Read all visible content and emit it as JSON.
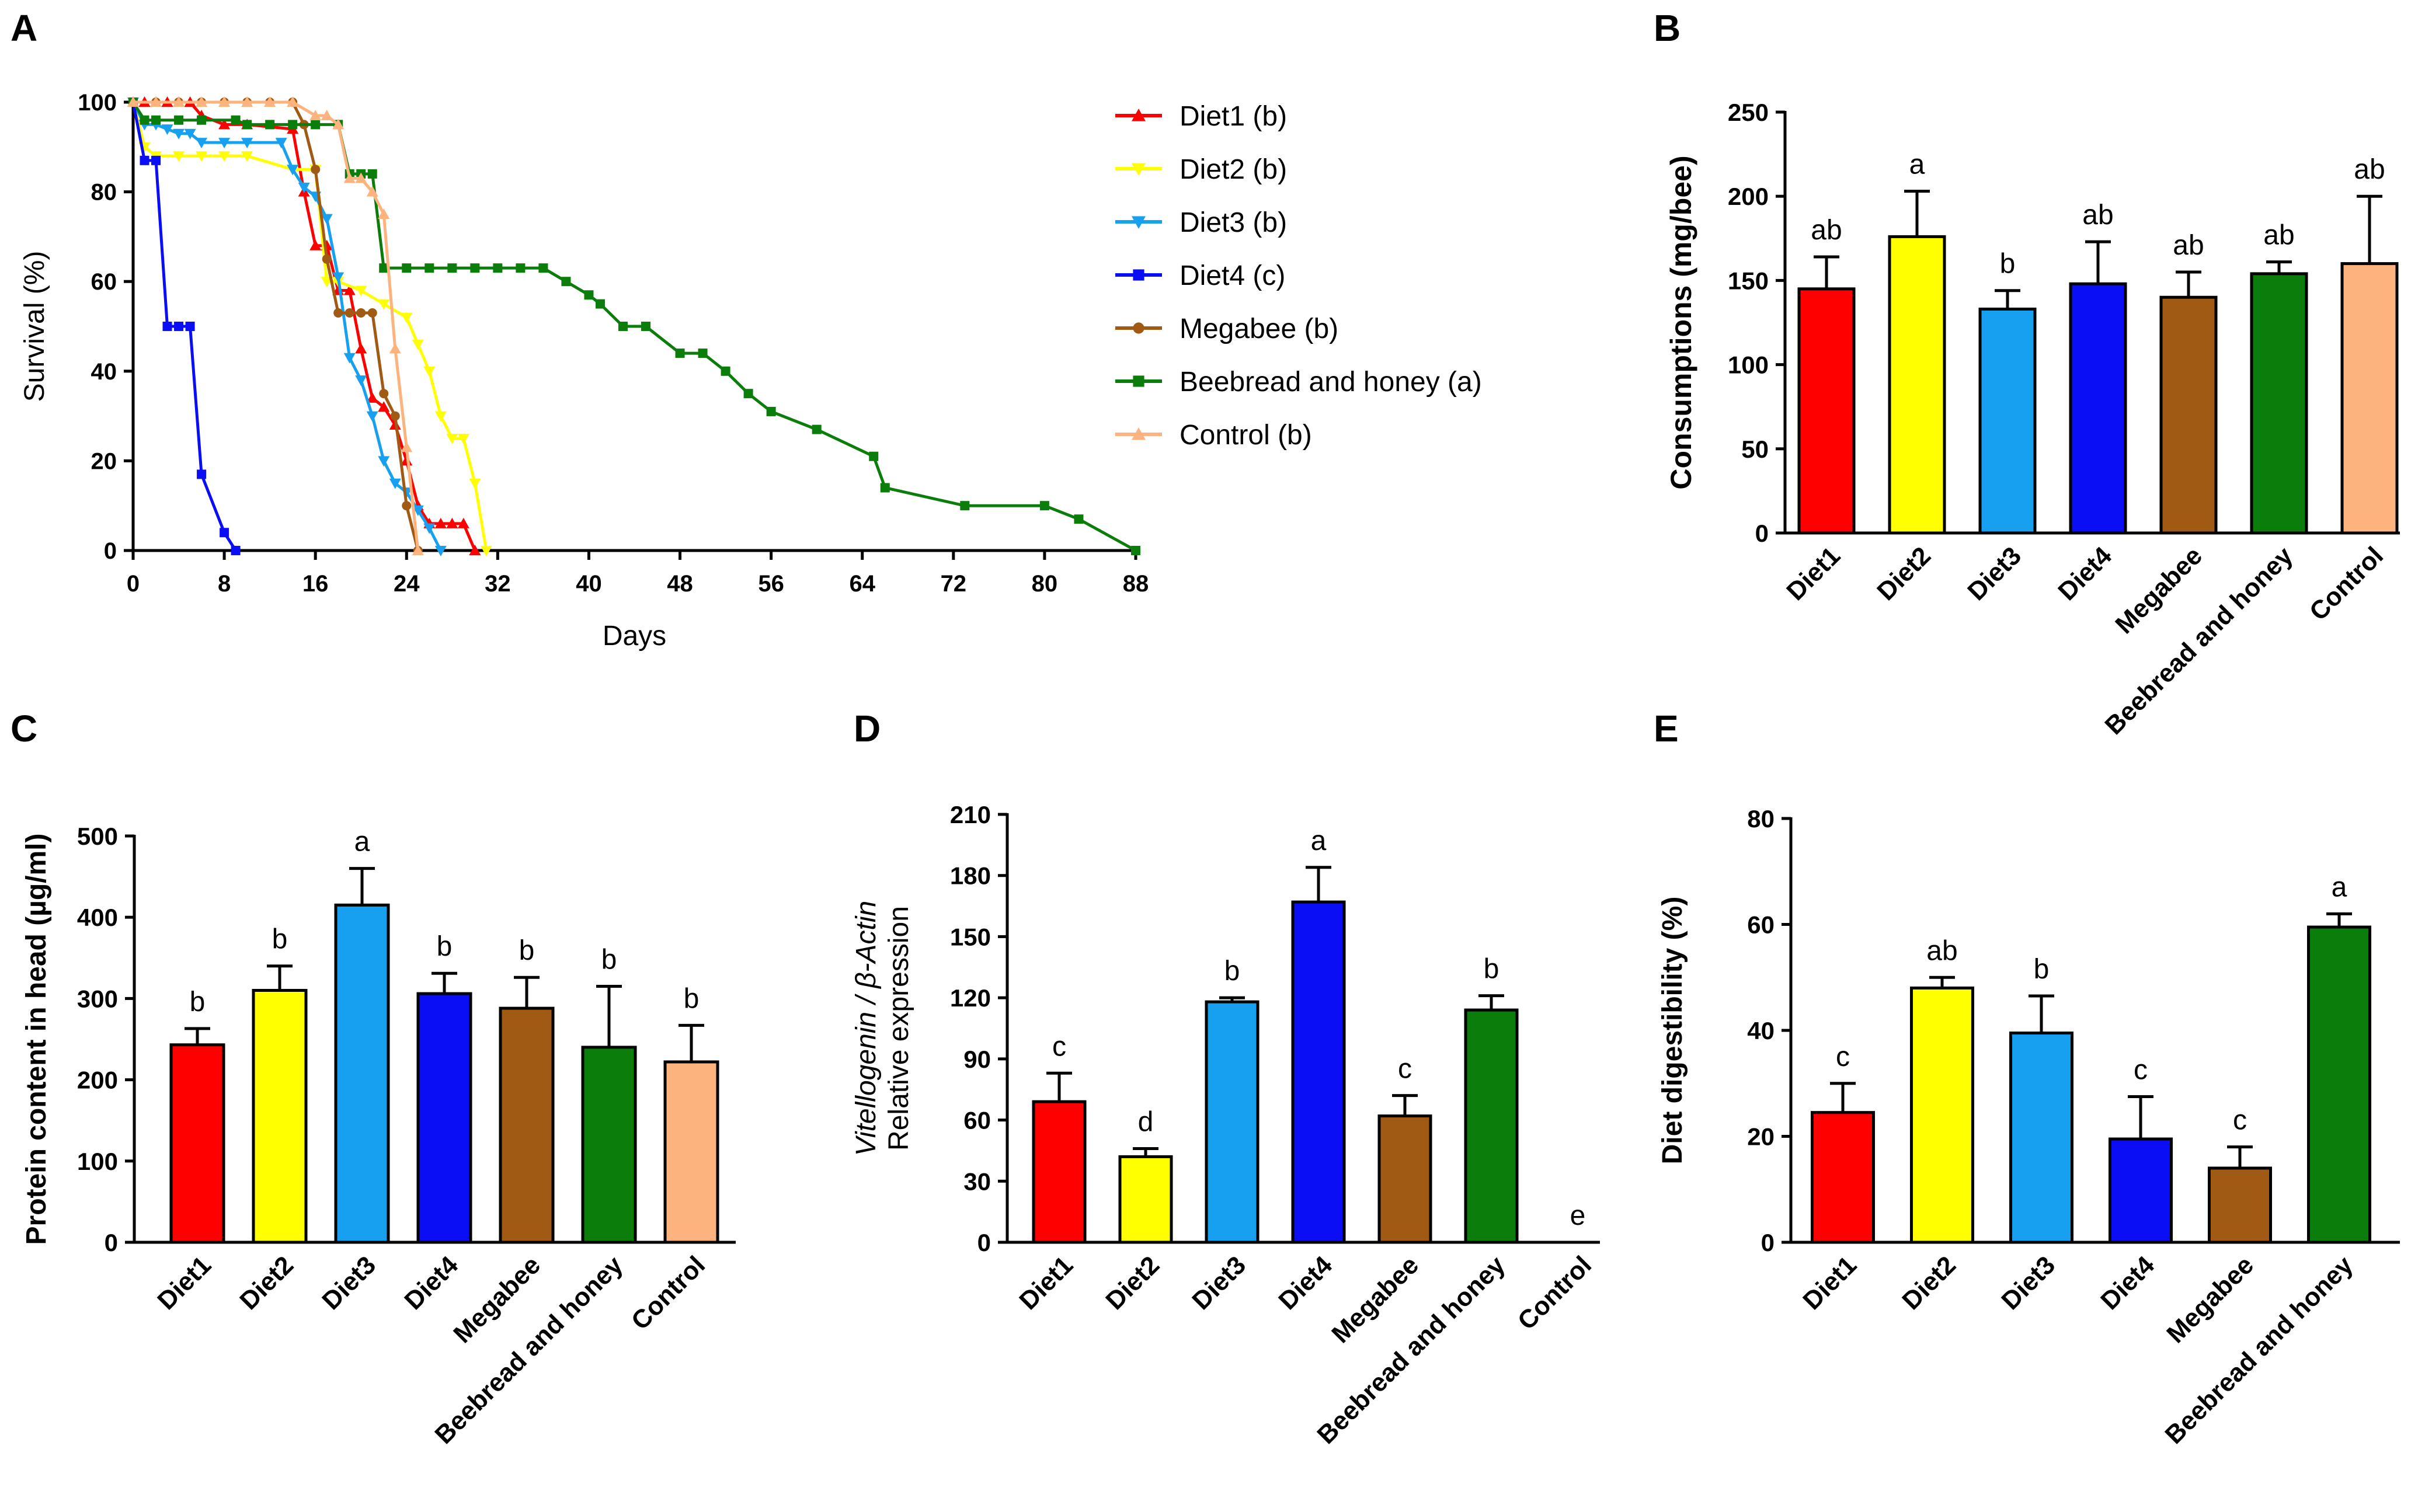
{
  "colors": {
    "Diet1": "#ff0000",
    "Diet2": "#ffff00",
    "Diet3": "#18a0f0",
    "Diet4": "#0a0ef5",
    "Megabee": "#a05a14",
    "Beebread and honey": "#0a7d0a",
    "Control": "#fcb37e"
  },
  "chart_data": [
    {
      "panel": "A",
      "type": "line",
      "title": "",
      "xlabel": "Days",
      "ylabel": "Survival (%)",
      "xlim": [
        0,
        88
      ],
      "ylim": [
        0,
        100
      ],
      "xticks": [
        0,
        8,
        16,
        24,
        32,
        40,
        48,
        56,
        64,
        72,
        80,
        88
      ],
      "yticks": [
        0,
        20,
        40,
        60,
        80,
        100
      ],
      "series": [
        {
          "name": "Diet1",
          "legend": "Diet1 (b)",
          "marker": "triangle",
          "x": [
            0,
            1,
            2,
            3,
            4,
            5,
            6,
            8,
            10,
            14,
            15,
            16,
            17,
            18,
            19,
            20,
            21,
            22,
            23,
            24,
            25,
            26,
            27,
            28,
            29,
            30
          ],
          "y": [
            100,
            100,
            100,
            100,
            100,
            100,
            97,
            95,
            95,
            94,
            80,
            68,
            68,
            58,
            58,
            45,
            34,
            32,
            28,
            20,
            10,
            6,
            6,
            6,
            6,
            0
          ]
        },
        {
          "name": "Diet2",
          "legend": "Diet2 (b)",
          "marker": "triangle-down",
          "x": [
            0,
            1,
            2,
            4,
            6,
            8,
            10,
            14,
            16,
            17,
            18,
            20,
            22,
            24,
            25,
            26,
            27,
            28,
            29,
            30,
            31
          ],
          "y": [
            100,
            90,
            88,
            88,
            88,
            88,
            88,
            85,
            85,
            60,
            60,
            58,
            55,
            52,
            46,
            40,
            30,
            25,
            25,
            15,
            0
          ]
        },
        {
          "name": "Diet3",
          "legend": "Diet3 (b)",
          "marker": "triangle-down",
          "x": [
            0,
            1,
            2,
            3,
            4,
            5,
            6,
            8,
            10,
            13,
            14,
            15,
            16,
            17,
            18,
            19,
            20,
            21,
            22,
            23,
            24,
            25,
            26,
            27
          ],
          "y": [
            100,
            95,
            95,
            94,
            93,
            93,
            91,
            91,
            91,
            91,
            85,
            81,
            79,
            74,
            61,
            43,
            38,
            30,
            20,
            15,
            13,
            9,
            5,
            0
          ]
        },
        {
          "name": "Diet4",
          "legend": "Diet4 (c)",
          "marker": "square",
          "x": [
            0,
            1,
            2,
            3,
            4,
            5,
            6,
            8,
            9
          ],
          "y": [
            100,
            87,
            87,
            50,
            50,
            50,
            17,
            4,
            0
          ]
        },
        {
          "name": "Megabee",
          "legend": "Megabee (b)",
          "marker": "circle",
          "x": [
            0,
            2,
            4,
            6,
            8,
            10,
            12,
            14,
            15,
            16,
            17,
            18,
            19,
            20,
            21,
            22,
            23,
            24,
            25
          ],
          "y": [
            100,
            100,
            100,
            100,
            100,
            100,
            100,
            100,
            95,
            85,
            65,
            53,
            53,
            53,
            53,
            35,
            30,
            10,
            0
          ]
        },
        {
          "name": "Beebread and honey",
          "legend": "Beebread and honey (a)",
          "marker": "square",
          "x": [
            0,
            1,
            2,
            4,
            6,
            9,
            10,
            12,
            14,
            16,
            18,
            19,
            20,
            21,
            22,
            24,
            26,
            28,
            30,
            32,
            34,
            36,
            38,
            40,
            41,
            43,
            45,
            48,
            50,
            52,
            54,
            56,
            60,
            65,
            66,
            73,
            80,
            83,
            88
          ],
          "y": [
            100,
            96,
            96,
            96,
            96,
            96,
            95,
            95,
            95,
            95,
            95,
            84,
            84,
            84,
            63,
            63,
            63,
            63,
            63,
            63,
            63,
            63,
            60,
            57,
            55,
            50,
            50,
            44,
            44,
            40,
            35,
            31,
            27,
            21,
            14,
            10,
            10,
            7,
            0
          ]
        },
        {
          "name": "Control",
          "legend": "Control (b)",
          "marker": "triangle",
          "x": [
            0,
            2,
            4,
            6,
            8,
            10,
            12,
            14,
            16,
            17,
            18,
            19,
            20,
            21,
            22,
            23,
            24,
            25
          ],
          "y": [
            100,
            100,
            100,
            100,
            100,
            100,
            100,
            100,
            97,
            97,
            95,
            83,
            83,
            80,
            75,
            45,
            23,
            0
          ]
        }
      ]
    },
    {
      "panel": "B",
      "type": "bar",
      "ylabel": "Consumptions (mg/bee)",
      "ylim": [
        0,
        250
      ],
      "yticks": [
        0,
        50,
        100,
        150,
        200,
        250
      ],
      "categories": [
        "Diet1",
        "Diet2",
        "Diet3",
        "Diet4",
        "Megabee",
        "Beebread and honey",
        "Control"
      ],
      "values": [
        145,
        176,
        133,
        148,
        140,
        154,
        160
      ],
      "errors": [
        19,
        27,
        11,
        25,
        15,
        7,
        40
      ],
      "letters": [
        "ab",
        "a",
        "b",
        "ab",
        "ab",
        "ab",
        "ab"
      ]
    },
    {
      "panel": "C",
      "type": "bar",
      "ylabel": "Protein  content in head (µg/ml)",
      "ylim": [
        0,
        500
      ],
      "yticks": [
        0,
        100,
        200,
        300,
        400,
        500
      ],
      "categories": [
        "Diet1",
        "Diet2",
        "Diet3",
        "Diet4",
        "Megabee",
        "Beebread and honey",
        "Control"
      ],
      "values": [
        243,
        310,
        415,
        306,
        288,
        240,
        222
      ],
      "errors": [
        20,
        30,
        45,
        25,
        38,
        75,
        45
      ],
      "letters": [
        "b",
        "b",
        "a",
        "b",
        "b",
        "b",
        "b"
      ]
    },
    {
      "panel": "D",
      "type": "bar",
      "ylabel_italic": "Vitellogenin / β-Actin",
      "ylabel": "Relative expression",
      "ylim": [
        0,
        210
      ],
      "yticks": [
        0,
        30,
        60,
        90,
        120,
        150,
        180,
        210
      ],
      "categories": [
        "Diet1",
        "Diet2",
        "Diet3",
        "Diet4",
        "Megabee",
        "Beebread and honey",
        "Control"
      ],
      "values": [
        69,
        42,
        118,
        167,
        62,
        114,
        0
      ],
      "errors": [
        14,
        4,
        2,
        17,
        10,
        7,
        0
      ],
      "letters": [
        "c",
        "d",
        "b",
        "a",
        "c",
        "b",
        "e"
      ]
    },
    {
      "panel": "E",
      "type": "bar",
      "ylabel": "Diet digestibility (%)",
      "ylim": [
        0,
        80
      ],
      "yticks": [
        0,
        20,
        40,
        60,
        80
      ],
      "categories": [
        "Diet1",
        "Diet2",
        "Diet3",
        "Diet4",
        "Megabee",
        "Beebread and honey"
      ],
      "values": [
        24.5,
        48,
        39.5,
        19.5,
        14,
        59.5
      ],
      "errors": [
        5.5,
        2,
        7,
        8,
        4,
        2.5
      ],
      "letters": [
        "c",
        "ab",
        "b",
        "c",
        "c",
        "a"
      ]
    }
  ]
}
